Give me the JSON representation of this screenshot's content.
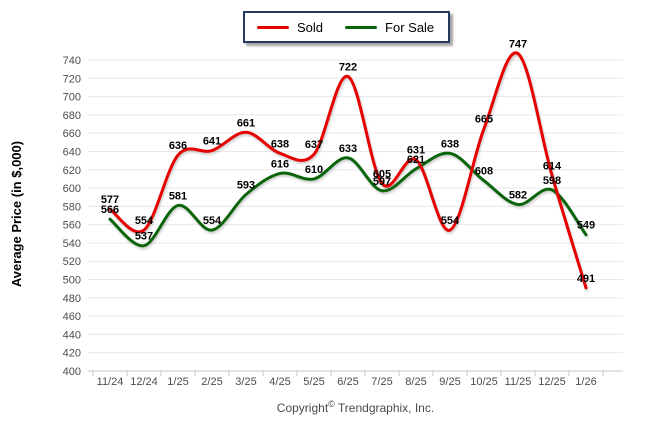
{
  "legend": {
    "items": [
      {
        "label": "Sold",
        "color": "#e60000"
      },
      {
        "label": "For Sale",
        "color": "#0a640a"
      }
    ]
  },
  "chart_data": {
    "type": "line",
    "categories": [
      "11/24",
      "12/24",
      "1/25",
      "2/25",
      "3/25",
      "4/25",
      "5/25",
      "6/25",
      "7/25",
      "8/25",
      "9/25",
      "10/25",
      "11/25",
      "12/25",
      "1/26"
    ],
    "series": [
      {
        "name": "Sold",
        "color": "#e60000",
        "values": [
          577,
          554,
          636,
          641,
          661,
          638,
          637,
          722,
          605,
          631,
          554,
          665,
          747,
          614,
          491
        ]
      },
      {
        "name": "For Sale",
        "color": "#0a640a",
        "values": [
          566,
          537,
          581,
          554,
          593,
          616,
          610,
          633,
          597,
          621,
          638,
          608,
          582,
          598,
          549
        ]
      }
    ],
    "title": "",
    "xlabel": "",
    "ylabel": "Average Price (in $,000)",
    "ylim": [
      400,
      740
    ],
    "ytick_step": 20,
    "grid": true,
    "legend_position": "top-center",
    "data_labels": true
  },
  "footer": {
    "copyright_prefix": "Copyright",
    "copyright_symbol": "©",
    "copyright_company": "Trendgraphix, Inc."
  }
}
